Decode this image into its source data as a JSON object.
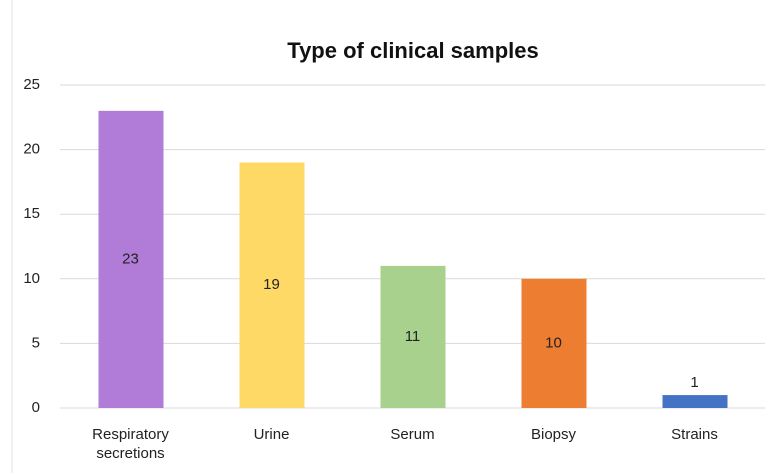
{
  "chart_data": {
    "type": "bar",
    "title": "Type of clinical samples",
    "categories": [
      "Respiratory secretions",
      "Urine",
      "Serum",
      "Biopsy",
      "Strains"
    ],
    "values": [
      23,
      19,
      11,
      10,
      1
    ],
    "colors": [
      "#b07cd8",
      "#ffd966",
      "#a9d18e",
      "#ed7d31",
      "#4472c4"
    ],
    "ylim": [
      0,
      25
    ],
    "yticks": [
      0,
      5,
      10,
      15,
      20,
      25
    ],
    "grid": true
  }
}
